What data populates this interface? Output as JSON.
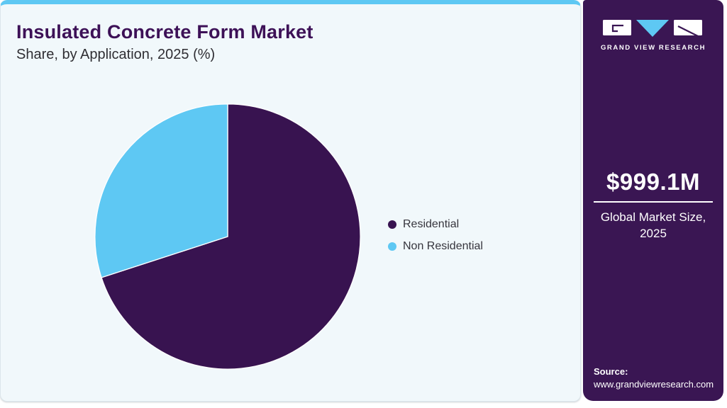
{
  "header": {
    "title": "Insulated Concrete Form Market",
    "subtitle": "Share, by Application, 2025 (%)"
  },
  "chart_data": {
    "type": "pie",
    "title": "Insulated Concrete Form Market Share, by Application, 2025 (%)",
    "slices": [
      {
        "label": "Residential",
        "value": 70,
        "color": "#381350"
      },
      {
        "label": "Non Residential",
        "value": 30,
        "color": "#5ec8f3"
      }
    ],
    "start_angle_deg": 0,
    "direction": "clockwise",
    "legend_position": "right-middle",
    "data_labels_shown": false
  },
  "sidebar": {
    "logo_brand": "GRAND VIEW RESEARCH",
    "market_size_value": "$999.1M",
    "market_size_label_line1": "Global Market Size,",
    "market_size_label_line2": "2025",
    "source_label": "Source:",
    "source_url": "www.grandviewresearch.com"
  },
  "colors": {
    "accent_blue": "#5ec8f3",
    "brand_purple": "#381350",
    "sidebar_bg": "#3a1653",
    "card_bg": "#f1f8fb",
    "title_text": "#3d1157"
  }
}
